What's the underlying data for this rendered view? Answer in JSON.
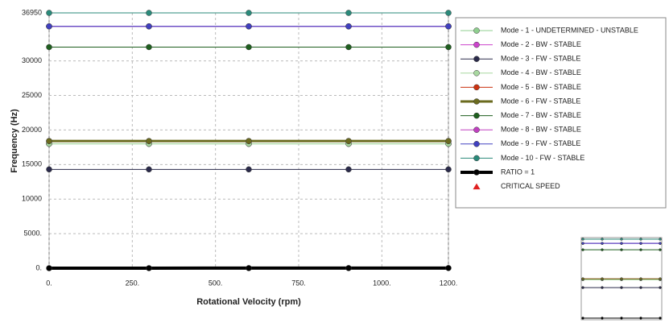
{
  "chart_data": {
    "type": "line",
    "x_label": "Rotational Velocity (rpm)",
    "y_label": "Frequency (Hz)",
    "x": [
      0,
      300,
      600,
      900,
      1200
    ],
    "xlim": [
      0,
      1200
    ],
    "xticks": [
      {
        "value": 0,
        "label": "0."
      },
      {
        "value": 250,
        "label": "250."
      },
      {
        "value": 500,
        "label": "500."
      },
      {
        "value": 750,
        "label": "750."
      },
      {
        "value": 1000,
        "label": "1000."
      },
      {
        "value": 1200,
        "label": "1200."
      }
    ],
    "ylim": [
      0,
      36950
    ],
    "yticks": [
      {
        "value": 0,
        "label": "0."
      },
      {
        "value": 5000,
        "label": "5000."
      },
      10000,
      15000,
      20000,
      25000,
      30000,
      36950
    ],
    "grid": true,
    "series": [
      {
        "name": "Mode - 1 - UNDETERMINED - UNSTABLE",
        "color": "#8fcf8f",
        "values": [
          18000,
          18000,
          18000,
          18000,
          18000
        ]
      },
      {
        "name": "Mode - 2 - BW - STABLE",
        "color": "#cc44cc",
        "values": [
          35000,
          35000,
          35000,
          35000,
          35000
        ]
      },
      {
        "name": "Mode - 3 - FW - STABLE",
        "color": "#2a2a4a",
        "values": [
          14300,
          14300,
          14300,
          14300,
          14300
        ]
      },
      {
        "name": "Mode - 4 - BW - STABLE",
        "color": "#a8d8a0",
        "values": [
          18000,
          18000,
          18000,
          18000,
          18000
        ]
      },
      {
        "name": "Mode - 5 - BW - STABLE",
        "color": "#cc3311",
        "values": [
          18400,
          18400,
          18400,
          18400,
          18400
        ]
      },
      {
        "name": "Mode - 6 - FW - STABLE",
        "color": "#6b6b1f",
        "width": 3,
        "values": [
          18400,
          18400,
          18400,
          18400,
          18400
        ]
      },
      {
        "name": "Mode - 7 - BW - STABLE",
        "color": "#1f5f1f",
        "values": [
          32000,
          32000,
          32000,
          32000,
          32000
        ]
      },
      {
        "name": "Mode - 8 - BW - STABLE",
        "color": "#c040c0",
        "values": [
          35000,
          35000,
          35000,
          35000,
          35000
        ]
      },
      {
        "name": "Mode - 9 - FW - STABLE",
        "color": "#4040c0",
        "values": [
          35000,
          35000,
          35000,
          35000,
          35000
        ]
      },
      {
        "name": "Mode - 10 - FW - STABLE",
        "color": "#2a8a7a",
        "values": [
          36950,
          36950,
          36950,
          36950,
          36950
        ]
      },
      {
        "name": "RATIO = 1",
        "color": "#000000",
        "width": 4,
        "values": [
          0,
          5,
          10,
          15,
          20
        ]
      }
    ],
    "critical_speed": {
      "name": "CRITICAL SPEED",
      "color": "#e02020"
    }
  }
}
